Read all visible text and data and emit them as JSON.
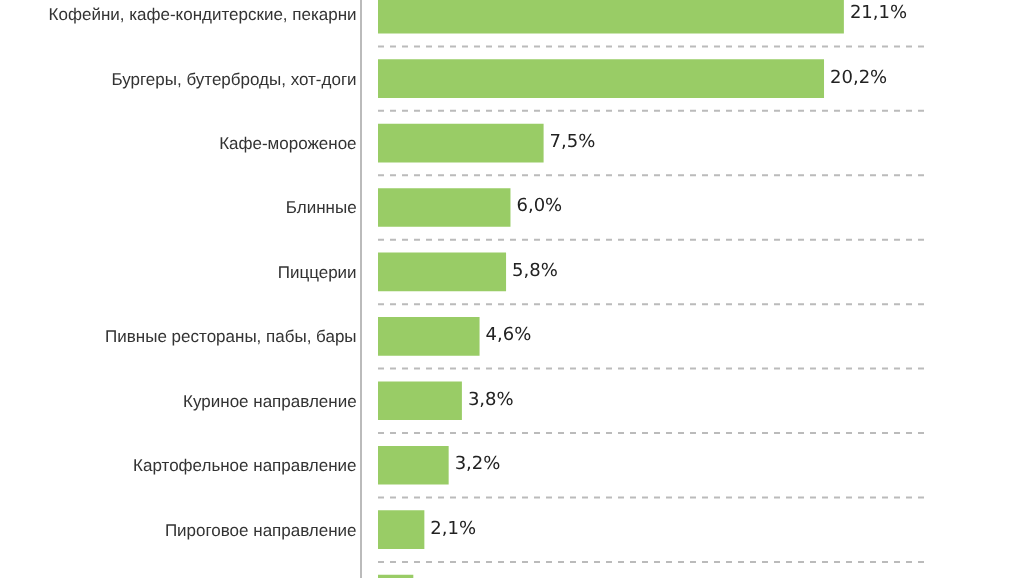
{
  "chart_data": {
    "type": "bar",
    "orientation": "horizontal",
    "categories": [
      "Кофейни, кафе-кондитерские, пекарни",
      "Бургеры, бутерброды, хот-доги",
      "Кафе-мороженое",
      "Блинные",
      "Пиццерии",
      "Пивные рестораны, пабы, бары",
      "Куриное направление",
      "Картофельное направление",
      "Пироговое направление",
      null
    ],
    "values": [
      21.1,
      20.2,
      7.5,
      6.0,
      5.8,
      4.6,
      3.8,
      3.2,
      2.1,
      1.6
    ],
    "value_labels": [
      "21,1%",
      "20,2%",
      "7,5%",
      "6,0%",
      "5,8%",
      "4,6%",
      "3,8%",
      "3,2%",
      "2,1%",
      null
    ],
    "color": "#99cc66",
    "xlim": [
      0,
      25
    ],
    "grid": "y",
    "tick_labels": "y",
    "legend": false
  }
}
